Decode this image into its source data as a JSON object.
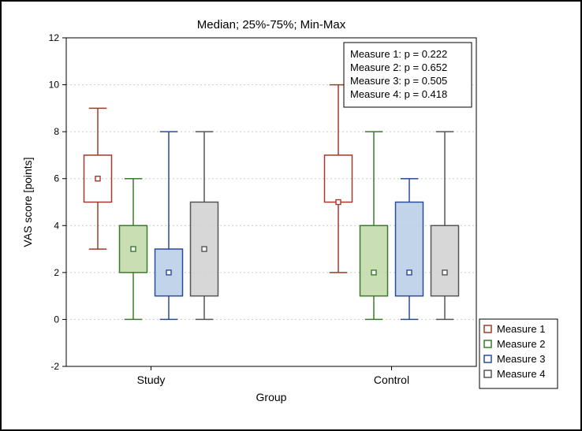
{
  "chart": {
    "type": "boxplot",
    "title": "Median; 25%-75%; Min-Max",
    "title_fontsize": 15,
    "xlabel": "Group",
    "ylabel": "VAS score [points]",
    "label_fontsize": 14,
    "tick_fontsize": 12,
    "background_color": "#ffffff",
    "grid_color": "#cccccc",
    "axis_color": "#000000",
    "outer_border_color": "#000000",
    "ylim": [
      -2,
      12
    ],
    "ytick_step": 2,
    "categories": [
      "Study",
      "Control"
    ],
    "series_spacing": 0.9,
    "group_center_gap": 5.2,
    "box_width": 0.7,
    "whisker_cap_width": 0.45,
    "marker_size": 6,
    "series": [
      {
        "name": "Measure 1",
        "color": "#a03a2a",
        "fill": "none",
        "fill_opacity": 1.0
      },
      {
        "name": "Measure 2",
        "color": "#3a7a2a",
        "fill": "#bfd8a4",
        "fill_opacity": 0.85
      },
      {
        "name": "Measure 3",
        "color": "#2a4a9a",
        "fill": "#b7cce6",
        "fill_opacity": 0.85
      },
      {
        "name": "Measure 4",
        "color": "#555555",
        "fill": "#d0d0d0",
        "fill_opacity": 0.85
      }
    ],
    "data": {
      "Study": [
        {
          "min": 3,
          "q1": 5,
          "median": 6,
          "q3": 7,
          "max": 9
        },
        {
          "min": 0,
          "q1": 2,
          "median": 3,
          "q3": 4,
          "max": 6
        },
        {
          "min": 0,
          "q1": 1,
          "median": 2,
          "q3": 3,
          "max": 8
        },
        {
          "min": 0,
          "q1": 1,
          "median": 3,
          "q3": 5,
          "max": 8
        }
      ],
      "Control": [
        {
          "min": 2,
          "q1": 5,
          "median": 5,
          "q3": 7,
          "max": 10
        },
        {
          "min": 0,
          "q1": 1,
          "median": 2,
          "q3": 4,
          "max": 8
        },
        {
          "min": 0,
          "q1": 1,
          "median": 2,
          "q3": 5,
          "max": 6
        },
        {
          "min": 0,
          "q1": 1,
          "median": 2,
          "q3": 4,
          "max": 8
        }
      ]
    },
    "annotations": [
      "Measure 1: p = 0.222",
      "Measure 2: p = 0.652",
      "Measure 3: p = 0.505",
      "Measure 4: p = 0.418"
    ],
    "annotation_fontsize": 13,
    "legend_fontsize": 13
  }
}
